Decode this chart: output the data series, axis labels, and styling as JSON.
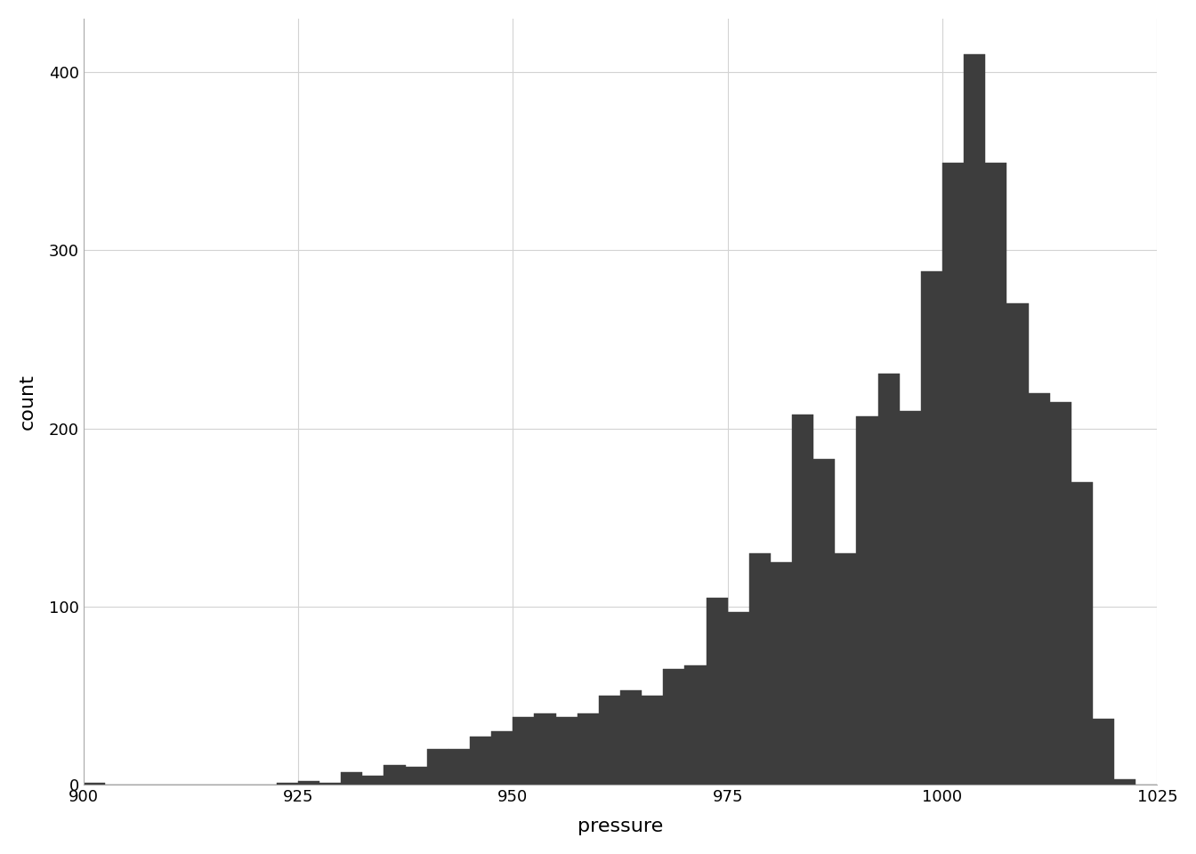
{
  "title": "",
  "xlabel": "pressure",
  "ylabel": "count",
  "bar_color": "#3d3d3d",
  "bar_edge_color": "#3d3d3d",
  "background_color": "#ffffff",
  "grid_color": "#d3d3d3",
  "xlim": [
    900,
    1025
  ],
  "ylim": [
    0,
    430
  ],
  "yticks": [
    0,
    100,
    200,
    300,
    400
  ],
  "xticks": [
    900,
    925,
    950,
    975,
    1000,
    1025
  ],
  "bin_edges": [
    900,
    902.5,
    905,
    907.5,
    910,
    912.5,
    915,
    917.5,
    920,
    922.5,
    925,
    927.5,
    930,
    932.5,
    935,
    937.5,
    940,
    942.5,
    945,
    947.5,
    950,
    952.5,
    955,
    957.5,
    960,
    962.5,
    965,
    967.5,
    970,
    972.5,
    975,
    977.5,
    980,
    982.5,
    985,
    987.5,
    990,
    992.5,
    995,
    997.5,
    1000,
    1002.5,
    1005,
    1007.5,
    1010,
    1012.5,
    1015,
    1017.5,
    1020,
    1022.5,
    1025
  ],
  "counts": [
    1,
    0,
    0,
    0,
    0,
    0,
    0,
    0,
    0,
    1,
    2,
    1,
    7,
    5,
    11,
    10,
    20,
    20,
    27,
    30,
    38,
    40,
    38,
    40,
    50,
    53,
    50,
    65,
    67,
    105,
    97,
    130,
    125,
    208,
    183,
    130,
    207,
    231,
    210,
    288,
    349,
    410,
    349,
    270,
    220,
    215,
    170,
    37,
    3,
    0
  ]
}
